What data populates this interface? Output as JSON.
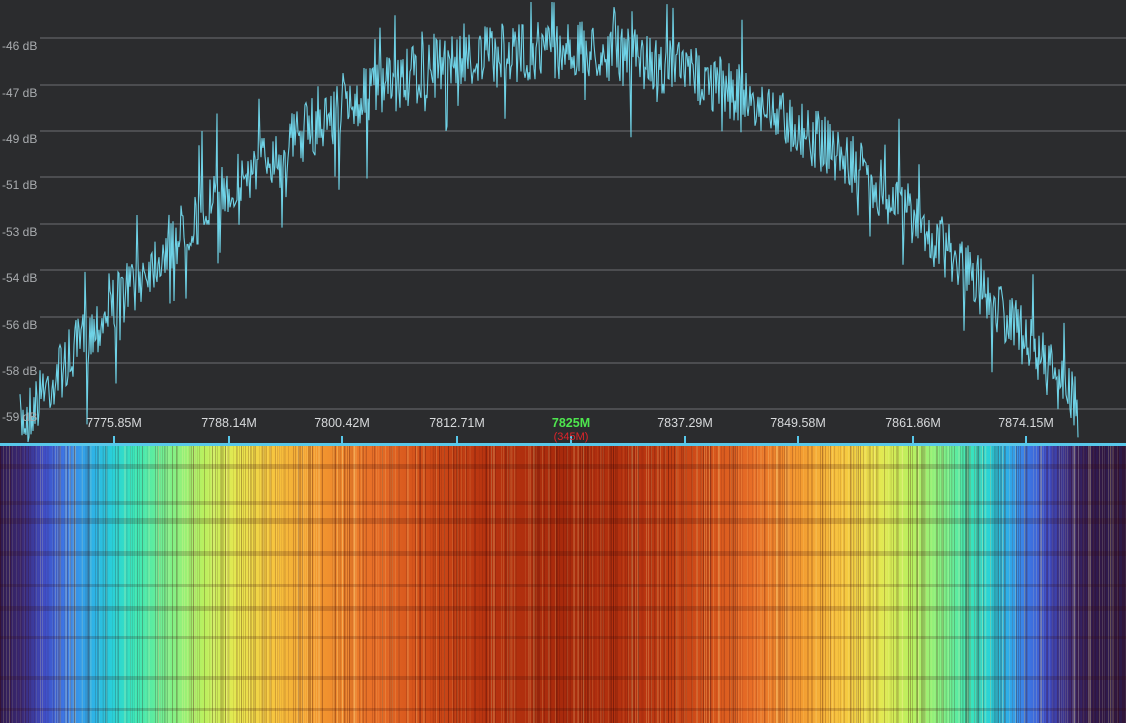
{
  "spectrum": {
    "db_labels": [
      "-46 dB",
      "-47 dB",
      "-49 dB",
      "-51 dB",
      "-53 dB",
      "-54 dB",
      "-56 dB",
      "-58 dB",
      "-59 dB"
    ],
    "freq_labels": [
      "7775.85M",
      "7788.14M",
      "7800.42M",
      "7812.71M",
      "7825M",
      "7837.29M",
      "7849.58M",
      "7861.86M",
      "7874.15M"
    ],
    "center_freq": "7825M",
    "span": "(345M)",
    "trace_color": "#6fd2e6",
    "center_color": "#4ee64e",
    "span_color": "#e0232a"
  },
  "waterfall": {
    "colormap": "jet"
  }
}
